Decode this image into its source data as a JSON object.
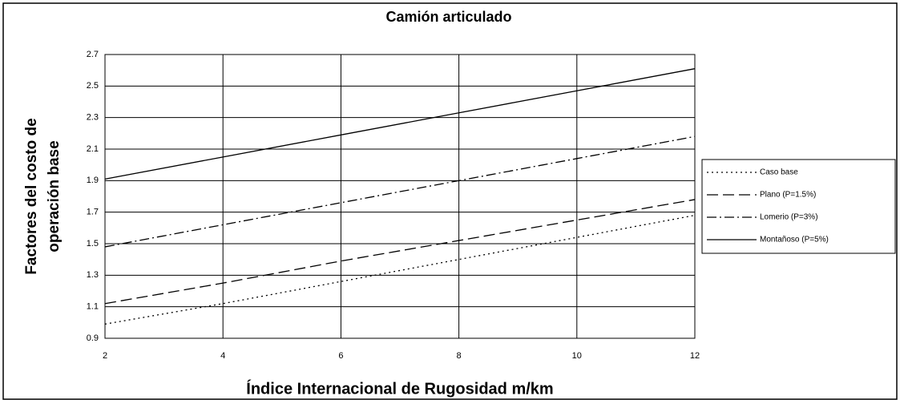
{
  "chart_data": {
    "type": "line",
    "title": "Camión articulado",
    "xlabel": "Índice Internacional de Rugosidad m/km",
    "ylabel": [
      "Factores del costo de",
      "operación base"
    ],
    "x": [
      2,
      4,
      6,
      8,
      10,
      12
    ],
    "series": [
      {
        "name": "Caso base",
        "color": "#000000",
        "dash": "dotted",
        "values": [
          0.99,
          1.12,
          1.26,
          1.4,
          1.54,
          1.68
        ]
      },
      {
        "name": "Plano (P=1.5%)",
        "color": "#000000",
        "dash": "dashed",
        "values": [
          1.12,
          1.25,
          1.39,
          1.52,
          1.65,
          1.78
        ]
      },
      {
        "name": "Lomerio (P=3%)",
        "color": "#000000",
        "dash": "dashdot",
        "values": [
          1.48,
          1.62,
          1.76,
          1.9,
          2.04,
          2.18
        ]
      },
      {
        "name": "Montañoso (P=5%)",
        "color": "#000000",
        "dash": "solid",
        "values": [
          1.91,
          2.05,
          2.19,
          2.33,
          2.47,
          2.61
        ]
      }
    ],
    "xlim": [
      2,
      12
    ],
    "xticks": [
      2,
      4,
      6,
      8,
      10,
      12
    ],
    "ylim": [
      0.9,
      2.7
    ],
    "yticks": [
      0.9,
      1.1,
      1.3,
      1.5,
      1.7,
      1.9,
      2.1,
      2.3,
      2.5,
      2.7
    ],
    "grid": true,
    "legend": "right"
  }
}
